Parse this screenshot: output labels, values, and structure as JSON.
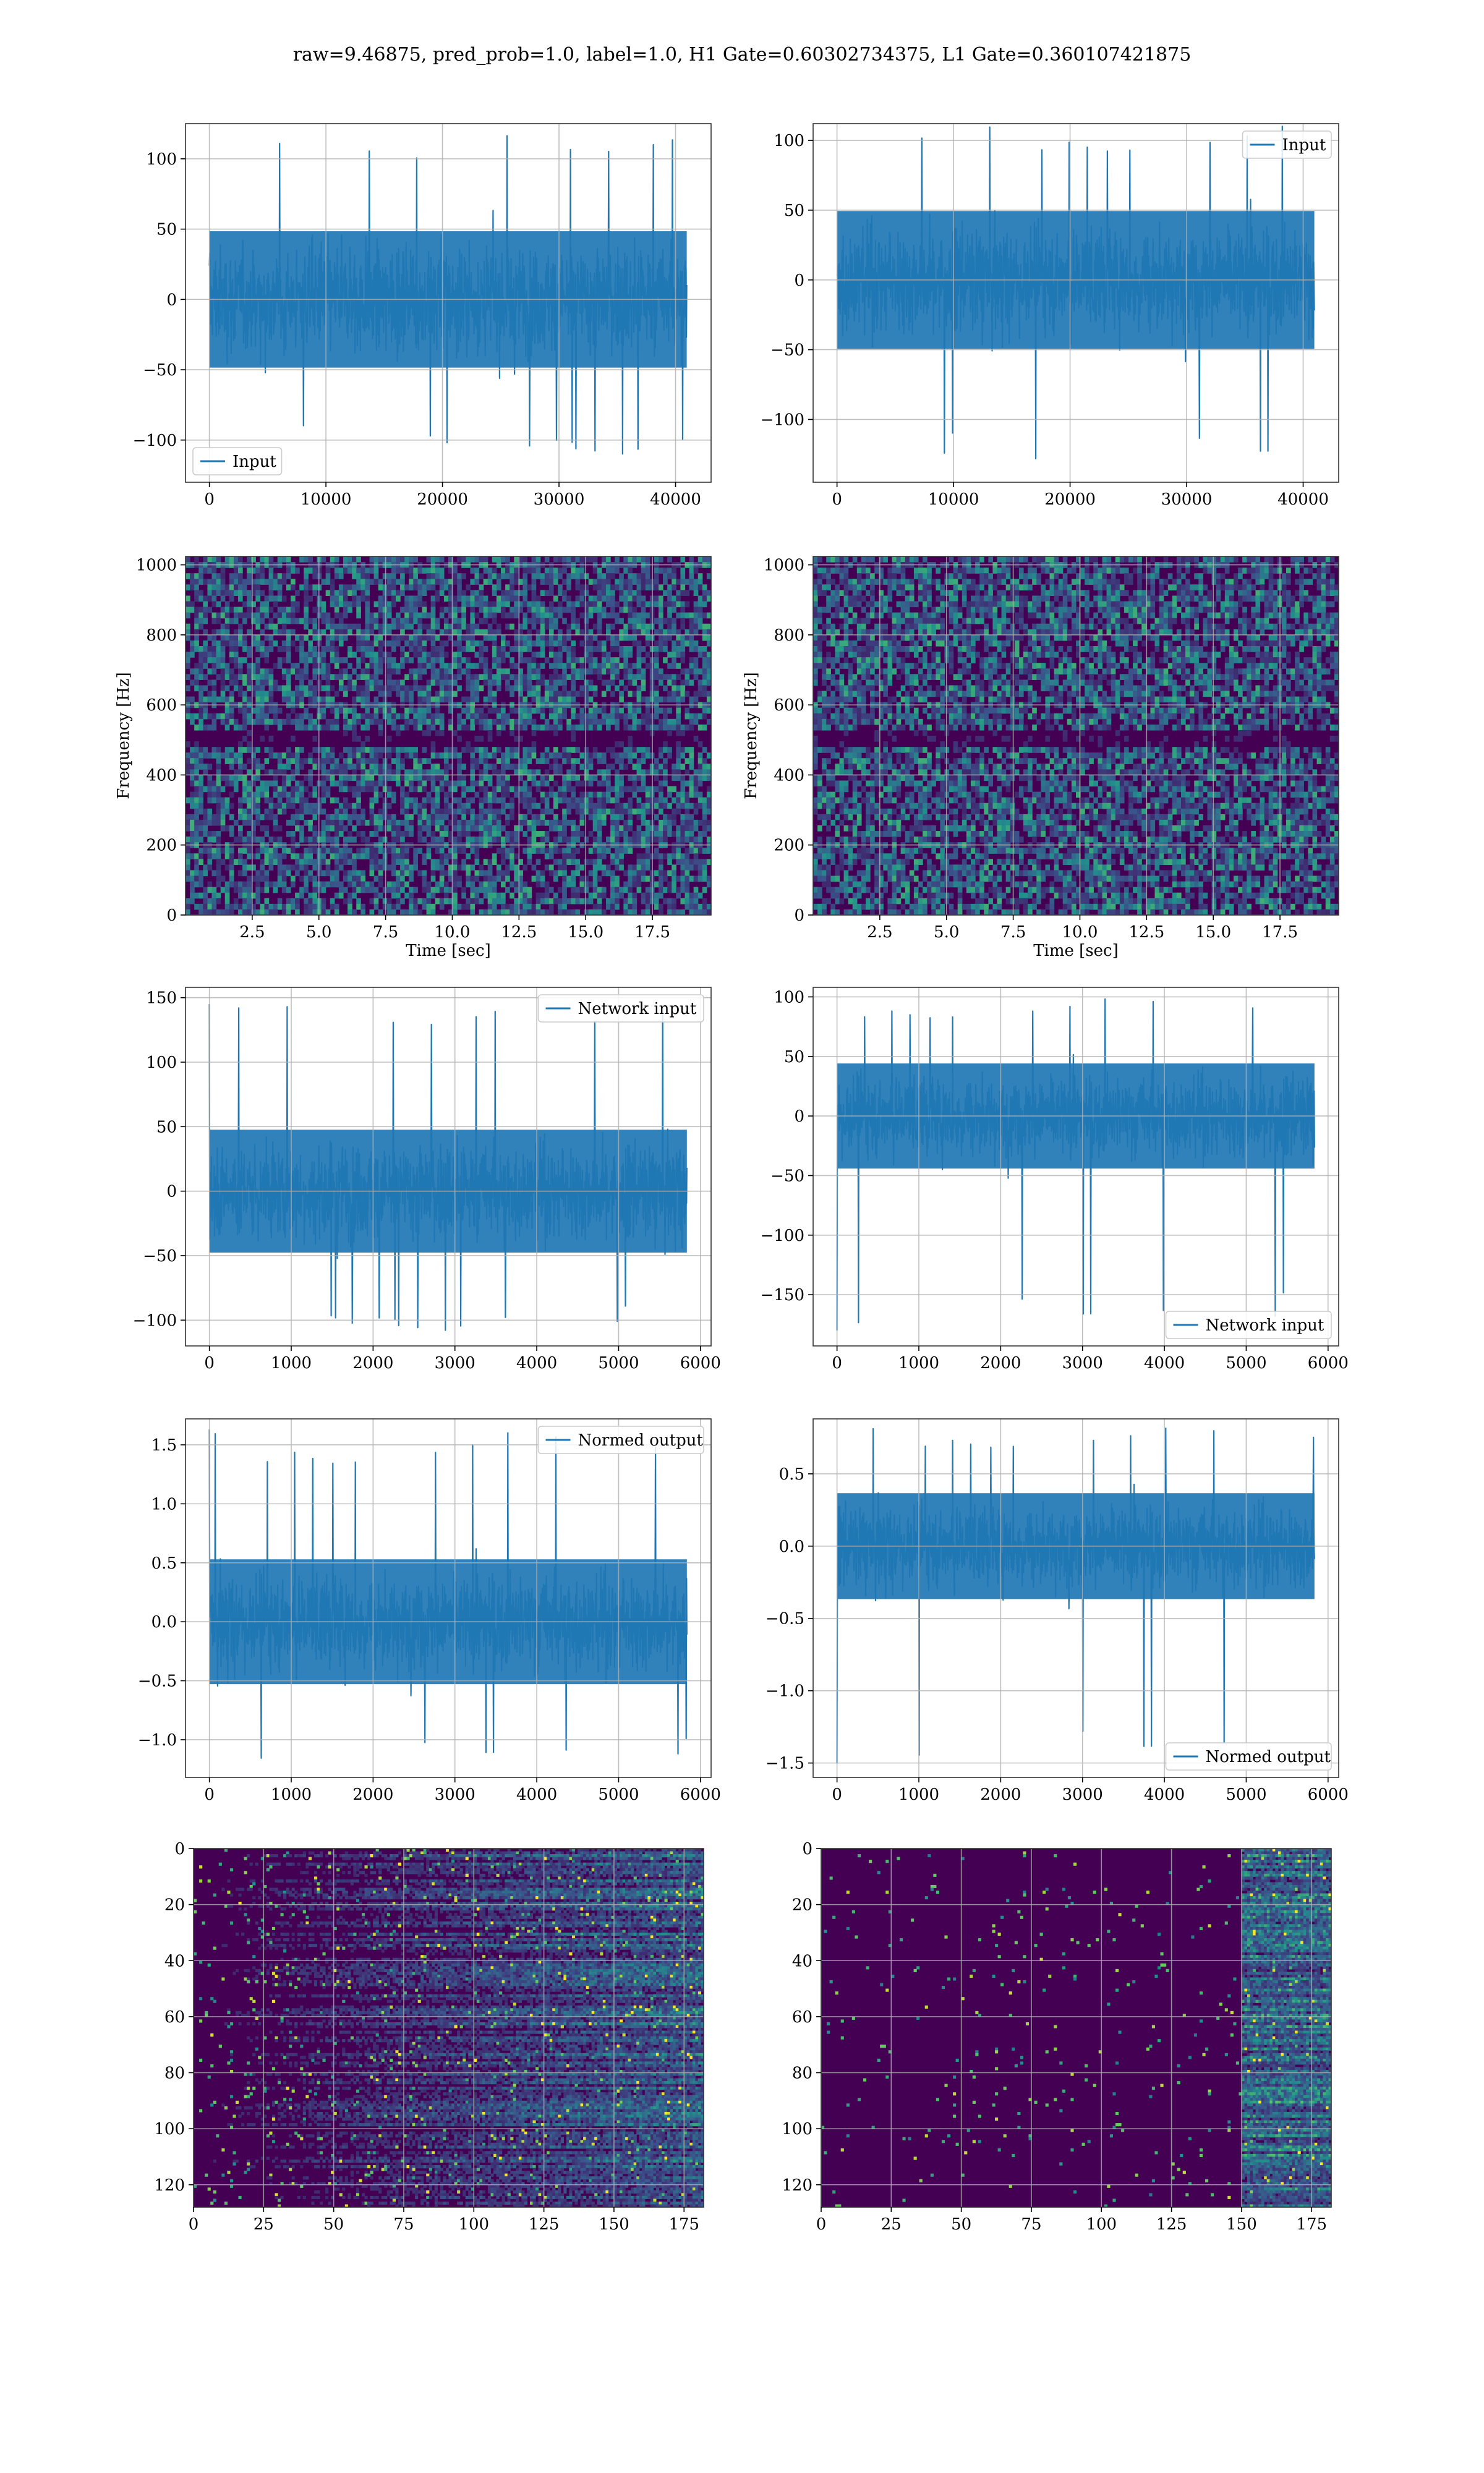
{
  "figure": {
    "suptitle": "raw=9.46875, pred_prob=1.0, label=1.0, H1 Gate=0.60302734375, L1 Gate=0.360107421875"
  },
  "colors": {
    "line": "#1f77b4",
    "grid": "#b0b0b0",
    "viridis_low": "#440154",
    "viridis_mid": "#21918c",
    "viridis_high": "#fde725"
  },
  "chart_data": [
    {
      "id": "h1-input",
      "type": "line",
      "ylim": [
        -130,
        125
      ],
      "xlim": [
        -2050,
        43050
      ],
      "xticks": [
        0,
        10000,
        20000,
        30000,
        40000
      ],
      "yticks": [
        -100,
        -50,
        0,
        50,
        100
      ],
      "legend": {
        "label": "Input",
        "loc": "lower-left"
      },
      "series": [
        {
          "name": "Input",
          "x_range": [
            0,
            40960
          ],
          "y_envelope": [
            -110,
            118
          ]
        }
      ],
      "grid": true
    },
    {
      "id": "l1-input",
      "type": "line",
      "ylim": [
        -145,
        112
      ],
      "xlim": [
        -2050,
        43050
      ],
      "xticks": [
        0,
        10000,
        20000,
        30000,
        40000
      ],
      "yticks": [
        -100,
        -50,
        0,
        50,
        100
      ],
      "legend": {
        "label": "Input",
        "loc": "upper-right"
      },
      "series": [
        {
          "name": "Input",
          "x_range": [
            0,
            40960
          ],
          "y_envelope": [
            -133,
            112
          ]
        }
      ],
      "grid": true
    },
    {
      "id": "h1-spectrogram",
      "type": "heatmap",
      "xlim": [
        0,
        19.7
      ],
      "ylim": [
        0,
        1024
      ],
      "xticks": [
        2.5,
        5.0,
        7.5,
        10.0,
        12.5,
        15.0,
        17.5
      ],
      "yticks": [
        0,
        200,
        400,
        600,
        800,
        1000
      ],
      "xlabel": "Time [sec]",
      "ylabel": "Frequency [Hz]",
      "colormap": "viridis",
      "dark_band_hz": 500,
      "grid": true
    },
    {
      "id": "l1-spectrogram",
      "type": "heatmap",
      "xlim": [
        0,
        19.7
      ],
      "ylim": [
        0,
        1024
      ],
      "xticks": [
        2.5,
        5.0,
        7.5,
        10.0,
        12.5,
        15.0,
        17.5
      ],
      "yticks": [
        0,
        200,
        400,
        600,
        800,
        1000
      ],
      "xlabel": "Time [sec]",
      "ylabel": "Frequency [Hz]",
      "colormap": "viridis",
      "dark_band_hz": 500,
      "grid": true
    },
    {
      "id": "h1-network-input",
      "type": "line",
      "ylim": [
        -120,
        158
      ],
      "xlim": [
        -292,
        6130
      ],
      "xticks": [
        0,
        1000,
        2000,
        3000,
        4000,
        5000,
        6000
      ],
      "yticks": [
        -100,
        -50,
        0,
        50,
        100,
        150
      ],
      "legend": {
        "label": "Network input",
        "loc": "upper-right"
      },
      "series": [
        {
          "name": "Network input",
          "x_range": [
            0,
            5834
          ],
          "y_envelope": [
            -108,
            145
          ]
        }
      ],
      "grid": true
    },
    {
      "id": "l1-network-input",
      "type": "line",
      "ylim": [
        -193,
        108
      ],
      "xlim": [
        -292,
        6130
      ],
      "xticks": [
        0,
        1000,
        2000,
        3000,
        4000,
        5000,
        6000
      ],
      "yticks": [
        -150,
        -100,
        -50,
        0,
        50,
        100
      ],
      "legend": {
        "label": "Network input",
        "loc": "lower-right"
      },
      "series": [
        {
          "name": "Network input",
          "x_range": [
            0,
            5834
          ],
          "y_envelope": [
            -180,
            100
          ]
        }
      ],
      "grid": true
    },
    {
      "id": "h1-normed-output",
      "type": "line",
      "ylim": [
        -1.32,
        1.72
      ],
      "xlim": [
        -292,
        6130
      ],
      "xticks": [
        0,
        1000,
        2000,
        3000,
        4000,
        5000,
        6000
      ],
      "yticks": [
        -1.0,
        -0.5,
        0.0,
        0.5,
        1.0,
        1.5
      ],
      "legend": {
        "label": "Normed output",
        "loc": "upper-right"
      },
      "series": [
        {
          "name": "Normed output",
          "x_range": [
            0,
            5834
          ],
          "y_envelope": [
            -1.2,
            1.63
          ]
        }
      ],
      "grid": true
    },
    {
      "id": "l1-normed-output",
      "type": "line",
      "ylim": [
        -1.6,
        0.88
      ],
      "xlim": [
        -292,
        6130
      ],
      "xticks": [
        0,
        1000,
        2000,
        3000,
        4000,
        5000,
        6000
      ],
      "yticks": [
        -1.5,
        -1.0,
        -0.5,
        0.0,
        0.5
      ],
      "legend": {
        "label": "Normed output",
        "loc": "lower-right"
      },
      "series": [
        {
          "name": "Normed output",
          "x_range": [
            0,
            5834
          ],
          "y_envelope": [
            -1.5,
            0.83
          ]
        }
      ],
      "grid": true
    },
    {
      "id": "h1-feature-map",
      "type": "heatmap",
      "xlim": [
        0,
        182
      ],
      "ylim": [
        128,
        0
      ],
      "xticks": [
        0,
        25,
        50,
        75,
        100,
        125,
        150,
        175
      ],
      "yticks": [
        0,
        20,
        40,
        60,
        80,
        100,
        120
      ],
      "colormap": "viridis",
      "grid": true
    },
    {
      "id": "l1-feature-map",
      "type": "heatmap",
      "xlim": [
        0,
        182
      ],
      "ylim": [
        128,
        0
      ],
      "xticks": [
        0,
        25,
        50,
        75,
        100,
        125,
        150,
        175
      ],
      "yticks": [
        0,
        20,
        40,
        60,
        80,
        100,
        120
      ],
      "colormap": "viridis",
      "grid": true
    }
  ]
}
